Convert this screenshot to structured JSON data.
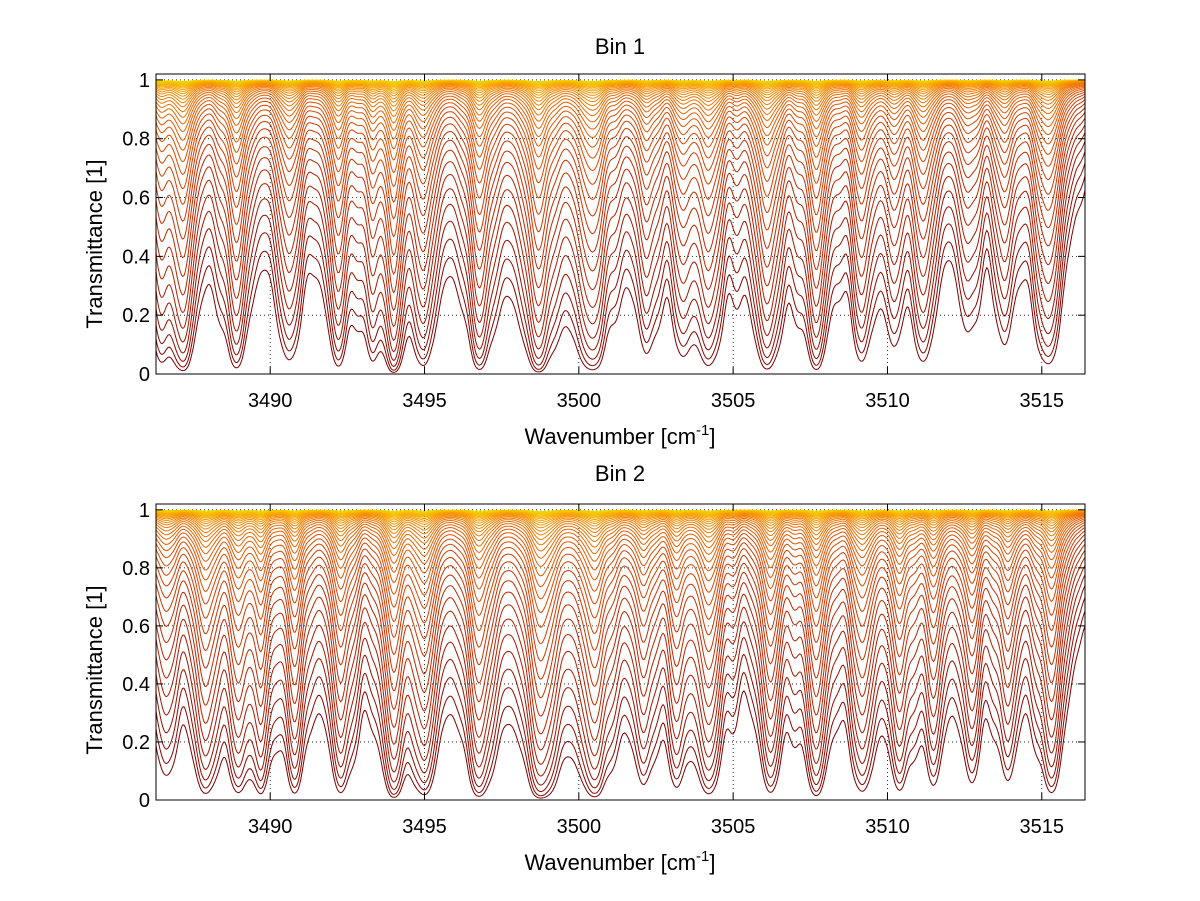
{
  "figure": {
    "background": "#ffffff"
  },
  "chart_data": [
    {
      "type": "line",
      "title": "Bin 1",
      "xlabel": "Wavenumber [cm",
      "xlabel_superscript": "-1",
      "xlabel_suffix": "]",
      "ylabel": "Transmittance [1]",
      "xlim": [
        3486.3,
        3516.4
      ],
      "ylim": [
        0,
        1.02
      ],
      "xticks": [
        3490,
        3495,
        3500,
        3505,
        3510,
        3515
      ],
      "xtick_labels": [
        "3490",
        "3495",
        "3500",
        "3505",
        "3510",
        "3515"
      ],
      "yticks": [
        0,
        0.2,
        0.4,
        0.6,
        0.8,
        1
      ],
      "ytick_labels": [
        "0",
        "0.2",
        "0.4",
        "0.6",
        "0.8",
        "1"
      ],
      "grid": true,
      "colormap": [
        "#7f0000",
        "#b01e00",
        "#d13a00",
        "#e85a00",
        "#f47d00",
        "#f9a300",
        "#f5c800",
        "#e6e000"
      ],
      "series_count": 40,
      "absorption_lines": [
        {
          "x": 3486.5,
          "depth": 0.6,
          "width": 0.35
        },
        {
          "x": 3487.2,
          "depth": 1.0,
          "width": 0.3
        },
        {
          "x": 3488.9,
          "depth": 0.85,
          "width": 0.35
        },
        {
          "x": 3490.6,
          "depth": 0.7,
          "width": 0.3
        },
        {
          "x": 3492.2,
          "depth": 0.8,
          "width": 0.3
        },
        {
          "x": 3493.3,
          "depth": 0.55,
          "width": 0.25
        },
        {
          "x": 3494.0,
          "depth": 1.2,
          "width": 0.25
        },
        {
          "x": 3495.0,
          "depth": 0.75,
          "width": 0.3
        },
        {
          "x": 3496.8,
          "depth": 0.9,
          "width": 0.35
        },
        {
          "x": 3498.7,
          "depth": 1.1,
          "width": 0.4
        },
        {
          "x": 3500.4,
          "depth": 1.0,
          "width": 0.45
        },
        {
          "x": 3502.2,
          "depth": 0.55,
          "width": 0.3
        },
        {
          "x": 3503.4,
          "depth": 0.5,
          "width": 0.3
        },
        {
          "x": 3504.2,
          "depth": 0.8,
          "width": 0.35
        },
        {
          "x": 3506.1,
          "depth": 1.0,
          "width": 0.35
        },
        {
          "x": 3507.7,
          "depth": 1.0,
          "width": 0.3
        },
        {
          "x": 3509.2,
          "depth": 0.65,
          "width": 0.3
        },
        {
          "x": 3510.2,
          "depth": 0.45,
          "width": 0.3
        },
        {
          "x": 3511.2,
          "depth": 0.7,
          "width": 0.3
        },
        {
          "x": 3512.6,
          "depth": 0.4,
          "width": 0.3
        },
        {
          "x": 3513.8,
          "depth": 0.5,
          "width": 0.3
        },
        {
          "x": 3515.2,
          "depth": 0.85,
          "width": 0.35
        }
      ]
    },
    {
      "type": "line",
      "title": "Bin 2",
      "xlabel": "Wavenumber [cm",
      "xlabel_superscript": "-1",
      "xlabel_suffix": "]",
      "ylabel": "Transmittance [1]",
      "xlim": [
        3486.3,
        3516.4
      ],
      "ylim": [
        0,
        1.02
      ],
      "xticks": [
        3490,
        3495,
        3500,
        3505,
        3510,
        3515
      ],
      "xtick_labels": [
        "3490",
        "3495",
        "3500",
        "3505",
        "3510",
        "3515"
      ],
      "yticks": [
        0,
        0.2,
        0.4,
        0.6,
        0.8,
        1
      ],
      "ytick_labels": [
        "0",
        "0.2",
        "0.4",
        "0.6",
        "0.8",
        "1"
      ],
      "grid": true,
      "colormap": [
        "#7f0000",
        "#b01e00",
        "#d13a00",
        "#e85a00",
        "#f47d00",
        "#f9a300",
        "#f5c800",
        "#e6e000"
      ],
      "series_count": 40,
      "absorption_lines": [
        {
          "x": 3486.6,
          "depth": 0.55,
          "width": 0.3
        },
        {
          "x": 3487.9,
          "depth": 0.9,
          "width": 0.35
        },
        {
          "x": 3489.0,
          "depth": 0.7,
          "width": 0.3
        },
        {
          "x": 3489.7,
          "depth": 0.8,
          "width": 0.25
        },
        {
          "x": 3490.8,
          "depth": 0.75,
          "width": 0.3
        },
        {
          "x": 3492.3,
          "depth": 0.85,
          "width": 0.3
        },
        {
          "x": 3494.0,
          "depth": 1.1,
          "width": 0.3
        },
        {
          "x": 3495.0,
          "depth": 0.9,
          "width": 0.3
        },
        {
          "x": 3496.8,
          "depth": 1.0,
          "width": 0.35
        },
        {
          "x": 3498.8,
          "depth": 1.2,
          "width": 0.4
        },
        {
          "x": 3500.5,
          "depth": 1.0,
          "width": 0.45
        },
        {
          "x": 3502.1,
          "depth": 0.6,
          "width": 0.3
        },
        {
          "x": 3503.2,
          "depth": 0.55,
          "width": 0.3
        },
        {
          "x": 3504.2,
          "depth": 0.9,
          "width": 0.35
        },
        {
          "x": 3506.2,
          "depth": 0.85,
          "width": 0.3
        },
        {
          "x": 3507.7,
          "depth": 1.0,
          "width": 0.3
        },
        {
          "x": 3509.2,
          "depth": 0.8,
          "width": 0.3
        },
        {
          "x": 3510.4,
          "depth": 0.75,
          "width": 0.3
        },
        {
          "x": 3511.5,
          "depth": 0.6,
          "width": 0.3
        },
        {
          "x": 3512.7,
          "depth": 0.55,
          "width": 0.3
        },
        {
          "x": 3513.9,
          "depth": 0.6,
          "width": 0.3
        },
        {
          "x": 3515.3,
          "depth": 0.85,
          "width": 0.35
        }
      ]
    }
  ]
}
